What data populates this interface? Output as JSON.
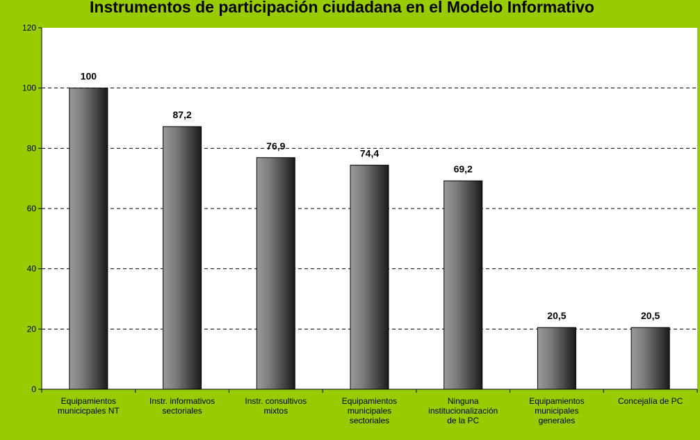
{
  "chart_data": {
    "type": "bar",
    "title": "Instrumentos de participación ciudadana en el Modelo Informativo",
    "xlabel": "",
    "ylabel": "",
    "categories": [
      [
        "Equipamientos",
        "municicpales NT"
      ],
      [
        "Instr. informativos",
        "sectoriales"
      ],
      [
        "Instr. consultivos",
        "mixtos"
      ],
      [
        "Equipamientos",
        "municipales",
        "sectoriales"
      ],
      [
        "Ninguna",
        "institucionalización",
        "de la PC"
      ],
      [
        "Equipamientos",
        "municipales",
        "generales"
      ],
      [
        "Concejalía de PC"
      ]
    ],
    "values": [
      100,
      87.2,
      76.9,
      74.4,
      69.2,
      20.5,
      20.5
    ],
    "data_labels": [
      "100",
      "87,2",
      "76,9",
      "74,4",
      "69,2",
      "20,5",
      "20,5"
    ],
    "ylim": [
      0,
      120
    ],
    "yticks": [
      0,
      20,
      40,
      60,
      80,
      100,
      120
    ],
    "grid": "dashed horizontal",
    "legend": "none",
    "colors": {
      "background": "#99cc00",
      "plot_area": "#ffffff",
      "bar_dark": "#1a1a1a",
      "bar_light": "#9a9a9a",
      "grid": "#000000"
    }
  }
}
